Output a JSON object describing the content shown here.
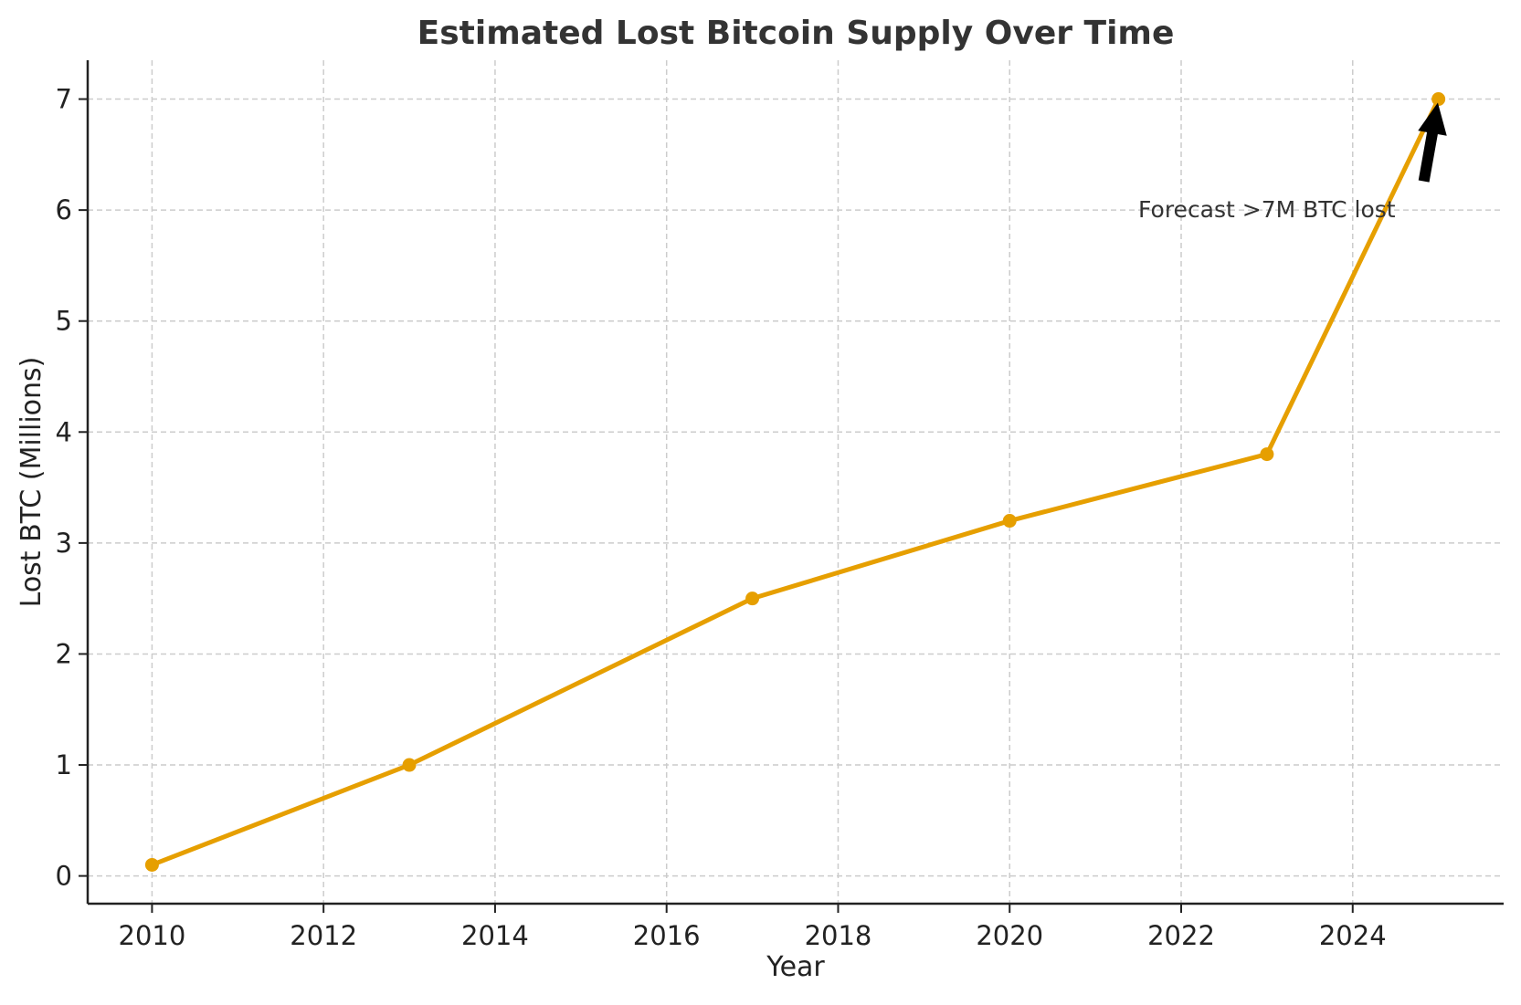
{
  "chart_data": {
    "type": "line",
    "title": "Estimated Lost Bitcoin Supply Over Time",
    "xlabel": "Year",
    "ylabel": "Lost BTC (Millions)",
    "x": [
      2010,
      2013,
      2017,
      2020,
      2023,
      2025
    ],
    "values": [
      0.1,
      1.0,
      2.5,
      3.2,
      3.8,
      7.0
    ],
    "xlim": [
      2009.25,
      2025.76
    ],
    "ylim": [
      -0.25,
      7.35
    ],
    "xticks": [
      2010,
      2012,
      2014,
      2016,
      2018,
      2020,
      2022,
      2024
    ],
    "yticks": [
      0,
      1,
      2,
      3,
      4,
      5,
      6,
      7
    ],
    "grid": true,
    "line_color": "#E69F00",
    "annotation": {
      "text": "Forecast >7M BTC lost",
      "text_at": [
        2021.5,
        6.0
      ],
      "points_to": [
        2025,
        7.0
      ]
    }
  }
}
